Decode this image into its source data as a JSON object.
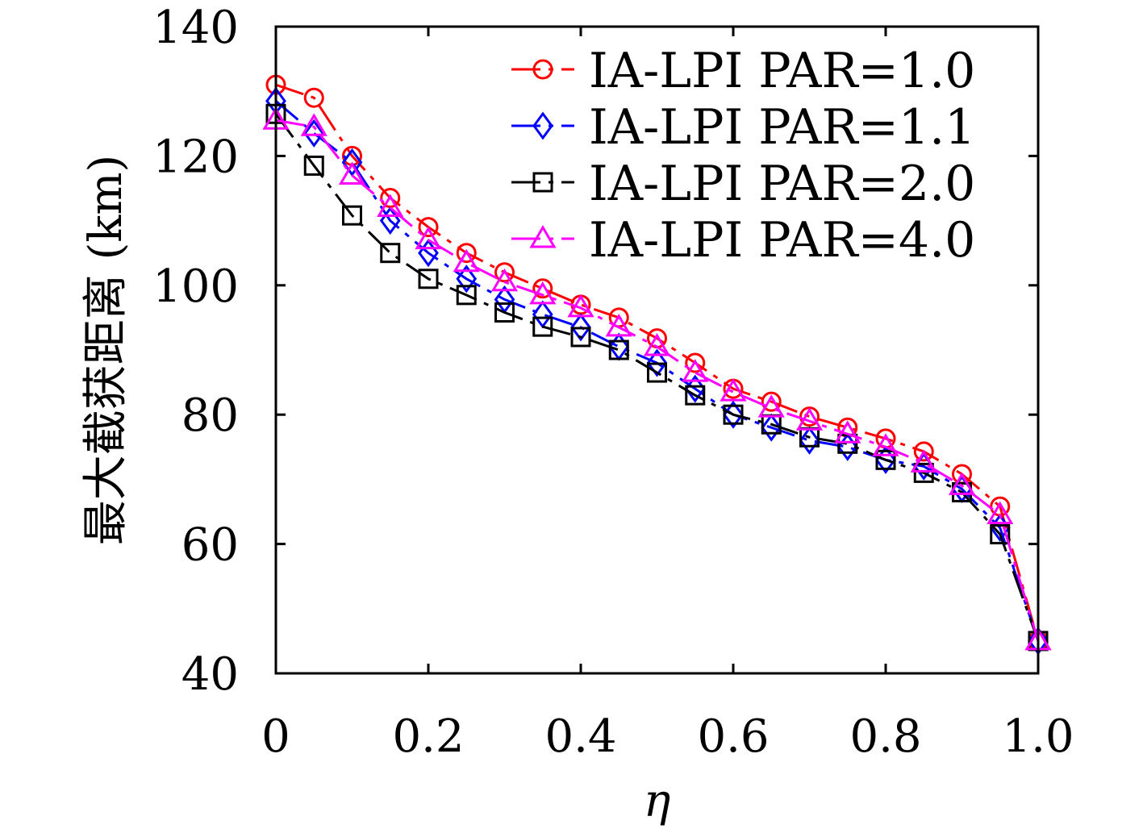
{
  "chart_data": {
    "type": "line",
    "title": "",
    "xlabel": "η",
    "ylabel": "最大截获距离 (km)",
    "xlim": [
      0,
      1.0
    ],
    "ylim": [
      40,
      140
    ],
    "x_ticks": [
      0,
      0.2,
      0.4,
      0.6,
      0.8,
      1.0
    ],
    "x_tick_labels": [
      "0",
      "0.2",
      "0.4",
      "0.6",
      "0.8",
      "1.0"
    ],
    "y_ticks": [
      40,
      60,
      80,
      100,
      120,
      140
    ],
    "y_tick_labels": [
      "40",
      "60",
      "80",
      "100",
      "120",
      "140"
    ],
    "grid": false,
    "legend_position": "top-right",
    "x": [
      0,
      0.05,
      0.1,
      0.15,
      0.2,
      0.25,
      0.3,
      0.35,
      0.4,
      0.45,
      0.5,
      0.55,
      0.6,
      0.65,
      0.7,
      0.75,
      0.8,
      0.85,
      0.9,
      0.95,
      1.0
    ],
    "series": [
      {
        "name": "IA-LPI PAR=1.0",
        "color": "#ff0000",
        "marker": "circle",
        "values": [
          131,
          129,
          120,
          113.5,
          109,
          105,
          102,
          99.5,
          97,
          95,
          91.8,
          88,
          84,
          82,
          79.7,
          78,
          76.3,
          74.3,
          70.8,
          65.8,
          45
        ]
      },
      {
        "name": "IA-LPI PAR=1.1",
        "color": "#0000ff",
        "marker": "diamond",
        "values": [
          128.5,
          123.5,
          119,
          110,
          105,
          101,
          97.8,
          95.5,
          93.5,
          90.5,
          88,
          84,
          80,
          78,
          76,
          75,
          73,
          72,
          68.5,
          62.5,
          45
        ]
      },
      {
        "name": "IA-LPI PAR=2.0",
        "color": "#000000",
        "marker": "square",
        "values": [
          126.5,
          118.5,
          110.8,
          105,
          101,
          98.5,
          95.8,
          93.6,
          92,
          90,
          86.5,
          83,
          80,
          78.5,
          76.5,
          75.5,
          73,
          71,
          68,
          61.5,
          45
        ]
      },
      {
        "name": "IA-LPI PAR=4.0",
        "color": "#ff00ff",
        "marker": "triangle",
        "values": [
          125.5,
          124.5,
          117,
          112,
          107,
          103.5,
          100.5,
          98.5,
          96.5,
          93.5,
          90.5,
          86.5,
          83.5,
          81,
          79,
          77,
          75,
          72.5,
          69,
          64.5,
          45
        ]
      }
    ]
  }
}
